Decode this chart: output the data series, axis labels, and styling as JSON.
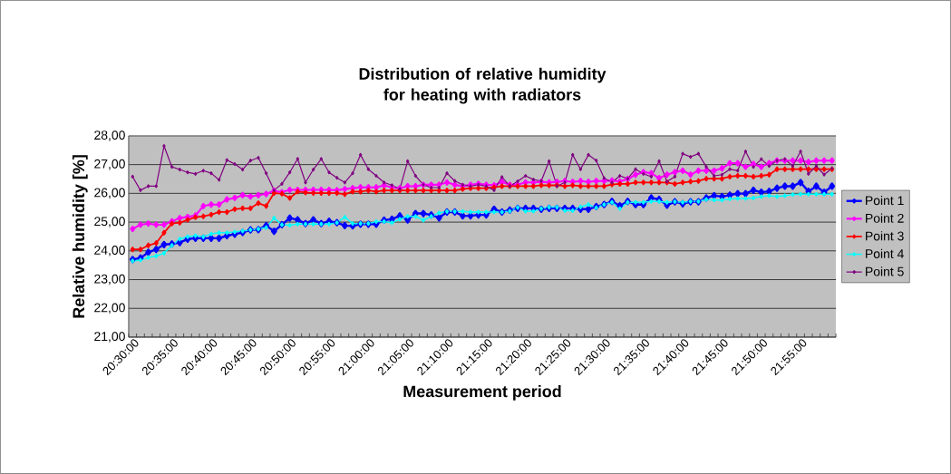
{
  "chart_data": {
    "type": "line",
    "title": "Distribution of relative humidity for heating with radiators",
    "xlabel": "Measurement period",
    "ylabel": "Relative humidity [%]",
    "categories": [
      "20:30:00",
      null,
      null,
      null,
      null,
      "20:35:00",
      null,
      null,
      null,
      null,
      "20:40:00",
      null,
      null,
      null,
      null,
      "20:45:00",
      null,
      null,
      null,
      null,
      "20:50:00",
      null,
      null,
      null,
      null,
      "20:55:00",
      null,
      null,
      null,
      null,
      "21:00:00",
      null,
      null,
      null,
      null,
      "21:05:00",
      null,
      null,
      null,
      null,
      "21:10:00",
      null,
      null,
      null,
      null,
      "21:15:00",
      null,
      null,
      null,
      null,
      "21:20:00",
      null,
      null,
      null,
      null,
      "21:25:00",
      null,
      null,
      null,
      null,
      "21:30:00",
      null,
      null,
      null,
      null,
      "21:35:00",
      null,
      null,
      null,
      null,
      "21:40:00",
      null,
      null,
      null,
      null,
      "21:45:00",
      null,
      null,
      null,
      null,
      "21:50:00",
      null,
      null,
      null,
      null,
      "21:55:00",
      null,
      null,
      null,
      null
    ],
    "series": [
      {
        "name": "Point 1",
        "color": "#0000ff",
        "values": [
          23.7,
          23.75,
          23.95,
          24.05,
          24.22,
          24.24,
          24.29,
          24.41,
          24.44,
          24.44,
          24.44,
          24.44,
          24.53,
          24.58,
          24.64,
          24.73,
          24.74,
          24.88,
          24.68,
          24.91,
          25.14,
          25.08,
          24.95,
          25.08,
          24.95,
          25.03,
          24.98,
          24.88,
          24.87,
          24.93,
          24.93,
          24.93,
          25.07,
          25.1,
          25.22,
          25.08,
          25.3,
          25.3,
          25.25,
          25.15,
          25.35,
          25.35,
          25.22,
          25.22,
          25.25,
          25.25,
          25.45,
          25.35,
          25.42,
          25.48,
          25.48,
          25.48,
          25.45,
          25.48,
          25.48,
          25.48,
          25.48,
          25.45,
          25.45,
          25.54,
          25.61,
          25.72,
          25.57,
          25.72,
          25.61,
          25.61,
          25.84,
          25.79,
          25.59,
          25.71,
          25.64,
          25.71,
          25.71,
          25.84,
          25.92,
          25.89,
          25.94,
          25.99,
          25.99,
          26.11,
          26.04,
          26.07,
          26.18,
          26.25,
          26.25,
          26.38,
          26.07,
          26.25,
          26.04,
          26.25
        ]
      },
      {
        "name": "Point 2",
        "color": "#ff00ff",
        "values": [
          24.76,
          24.91,
          24.95,
          24.91,
          24.91,
          25.03,
          25.14,
          25.18,
          25.23,
          25.56,
          25.61,
          25.61,
          25.79,
          25.84,
          25.94,
          25.89,
          25.94,
          25.98,
          26.09,
          26.04,
          26.12,
          26.12,
          26.12,
          26.12,
          26.12,
          26.12,
          26.11,
          26.15,
          26.18,
          26.21,
          26.21,
          26.21,
          26.28,
          26.21,
          26.18,
          26.25,
          26.25,
          26.3,
          26.3,
          26.3,
          26.38,
          26.3,
          26.25,
          26.3,
          26.33,
          26.3,
          26.28,
          26.4,
          26.3,
          26.3,
          26.38,
          26.38,
          26.4,
          26.38,
          26.4,
          26.43,
          26.4,
          26.43,
          26.4,
          26.43,
          26.43,
          26.45,
          26.41,
          26.5,
          26.65,
          26.74,
          26.7,
          26.53,
          26.65,
          26.74,
          26.79,
          26.65,
          26.79,
          26.79,
          26.79,
          26.87,
          27.05,
          27.05,
          26.92,
          27.02,
          26.92,
          27.05,
          27.14,
          27.14,
          27.14,
          27.14,
          27.09,
          27.14,
          27.14,
          27.14
        ]
      },
      {
        "name": "Point 3",
        "color": "#ff0000",
        "values": [
          24.05,
          24.05,
          24.19,
          24.27,
          24.63,
          24.95,
          24.98,
          25.08,
          25.17,
          25.2,
          25.26,
          25.35,
          25.35,
          25.45,
          25.48,
          25.48,
          25.66,
          25.56,
          26.01,
          25.99,
          25.84,
          26.06,
          26.03,
          26.01,
          26.01,
          26.01,
          26.01,
          25.97,
          26.06,
          26.06,
          26.1,
          26.06,
          26.1,
          26.1,
          26.1,
          26.1,
          26.1,
          26.1,
          26.1,
          26.1,
          26.1,
          26.1,
          26.15,
          26.18,
          26.18,
          26.18,
          26.21,
          26.25,
          26.25,
          26.25,
          26.25,
          26.25,
          26.28,
          26.28,
          26.28,
          26.25,
          26.28,
          26.25,
          26.25,
          26.25,
          26.25,
          26.31,
          26.33,
          26.33,
          26.38,
          26.38,
          26.38,
          26.38,
          26.38,
          26.33,
          26.38,
          26.41,
          26.43,
          26.51,
          26.51,
          26.51,
          26.58,
          26.61,
          26.61,
          26.58,
          26.61,
          26.65,
          26.84,
          26.84,
          26.84,
          26.84,
          26.84,
          26.84,
          26.84,
          26.84
        ]
      },
      {
        "name": "Point 4",
        "color": "#00ffff",
        "values": [
          23.65,
          23.68,
          23.77,
          23.82,
          23.92,
          24.19,
          24.41,
          24.49,
          24.53,
          24.49,
          24.59,
          24.63,
          24.63,
          24.66,
          24.69,
          24.73,
          24.76,
          24.81,
          25.14,
          24.91,
          24.89,
          24.93,
          24.93,
          24.93,
          24.93,
          24.93,
          24.98,
          25.17,
          24.95,
          24.95,
          24.95,
          25.02,
          25.02,
          24.98,
          25.1,
          25.2,
          25.2,
          25.07,
          25.2,
          25.32,
          25.37,
          25.37,
          25.37,
          25.35,
          25.35,
          25.35,
          25.35,
          25.35,
          25.38,
          25.51,
          25.38,
          25.38,
          25.47,
          25.52,
          25.52,
          25.4,
          25.4,
          25.53,
          25.61,
          25.5,
          25.61,
          25.69,
          25.47,
          25.69,
          25.69,
          25.69,
          25.72,
          25.72,
          25.69,
          25.71,
          25.69,
          25.72,
          25.72,
          25.79,
          25.77,
          25.77,
          25.81,
          25.82,
          25.82,
          25.84,
          25.89,
          25.92,
          25.89,
          25.92,
          25.96,
          25.97,
          25.97,
          25.97,
          25.97,
          25.97
        ]
      },
      {
        "name": "Point 5",
        "color": "#800080",
        "values": [
          26.58,
          26.11,
          26.25,
          26.25,
          27.65,
          26.92,
          26.83,
          26.73,
          26.68,
          26.79,
          26.7,
          26.47,
          27.16,
          27.02,
          26.83,
          27.14,
          27.24,
          26.7,
          26.11,
          26.33,
          26.73,
          27.2,
          26.38,
          26.83,
          27.2,
          26.73,
          26.54,
          26.38,
          26.7,
          27.34,
          26.84,
          26.61,
          26.38,
          26.28,
          26.15,
          27.12,
          26.61,
          26.3,
          26.2,
          26.2,
          26.7,
          26.43,
          26.3,
          26.25,
          26.3,
          26.25,
          26.11,
          26.57,
          26.25,
          26.42,
          26.61,
          26.48,
          26.43,
          27.12,
          26.25,
          26.38,
          27.34,
          26.84,
          27.34,
          27.14,
          26.53,
          26.38,
          26.61,
          26.51,
          26.84,
          26.68,
          26.58,
          27.12,
          26.41,
          26.58,
          27.38,
          27.27,
          27.38,
          26.92,
          26.61,
          26.65,
          26.84,
          26.79,
          27.46,
          26.92,
          27.19,
          26.95,
          27.14,
          27.19,
          26.95,
          27.46,
          26.68,
          26.95,
          26.65,
          26.87
        ]
      }
    ],
    "ylim": [
      21,
      28
    ],
    "yticks": [
      {
        "value": 21,
        "label": "21,00"
      },
      {
        "value": 22,
        "label": "22,00"
      },
      {
        "value": 23,
        "label": "23,00"
      },
      {
        "value": 24,
        "label": "24,00"
      },
      {
        "value": 25,
        "label": "25,00"
      },
      {
        "value": 26,
        "label": "26,00"
      },
      {
        "value": 27,
        "label": "27,00"
      },
      {
        "value": 28,
        "label": "28,00"
      }
    ],
    "grid": "y",
    "legend": "right",
    "marker": "diamond",
    "line_style": "solid"
  }
}
